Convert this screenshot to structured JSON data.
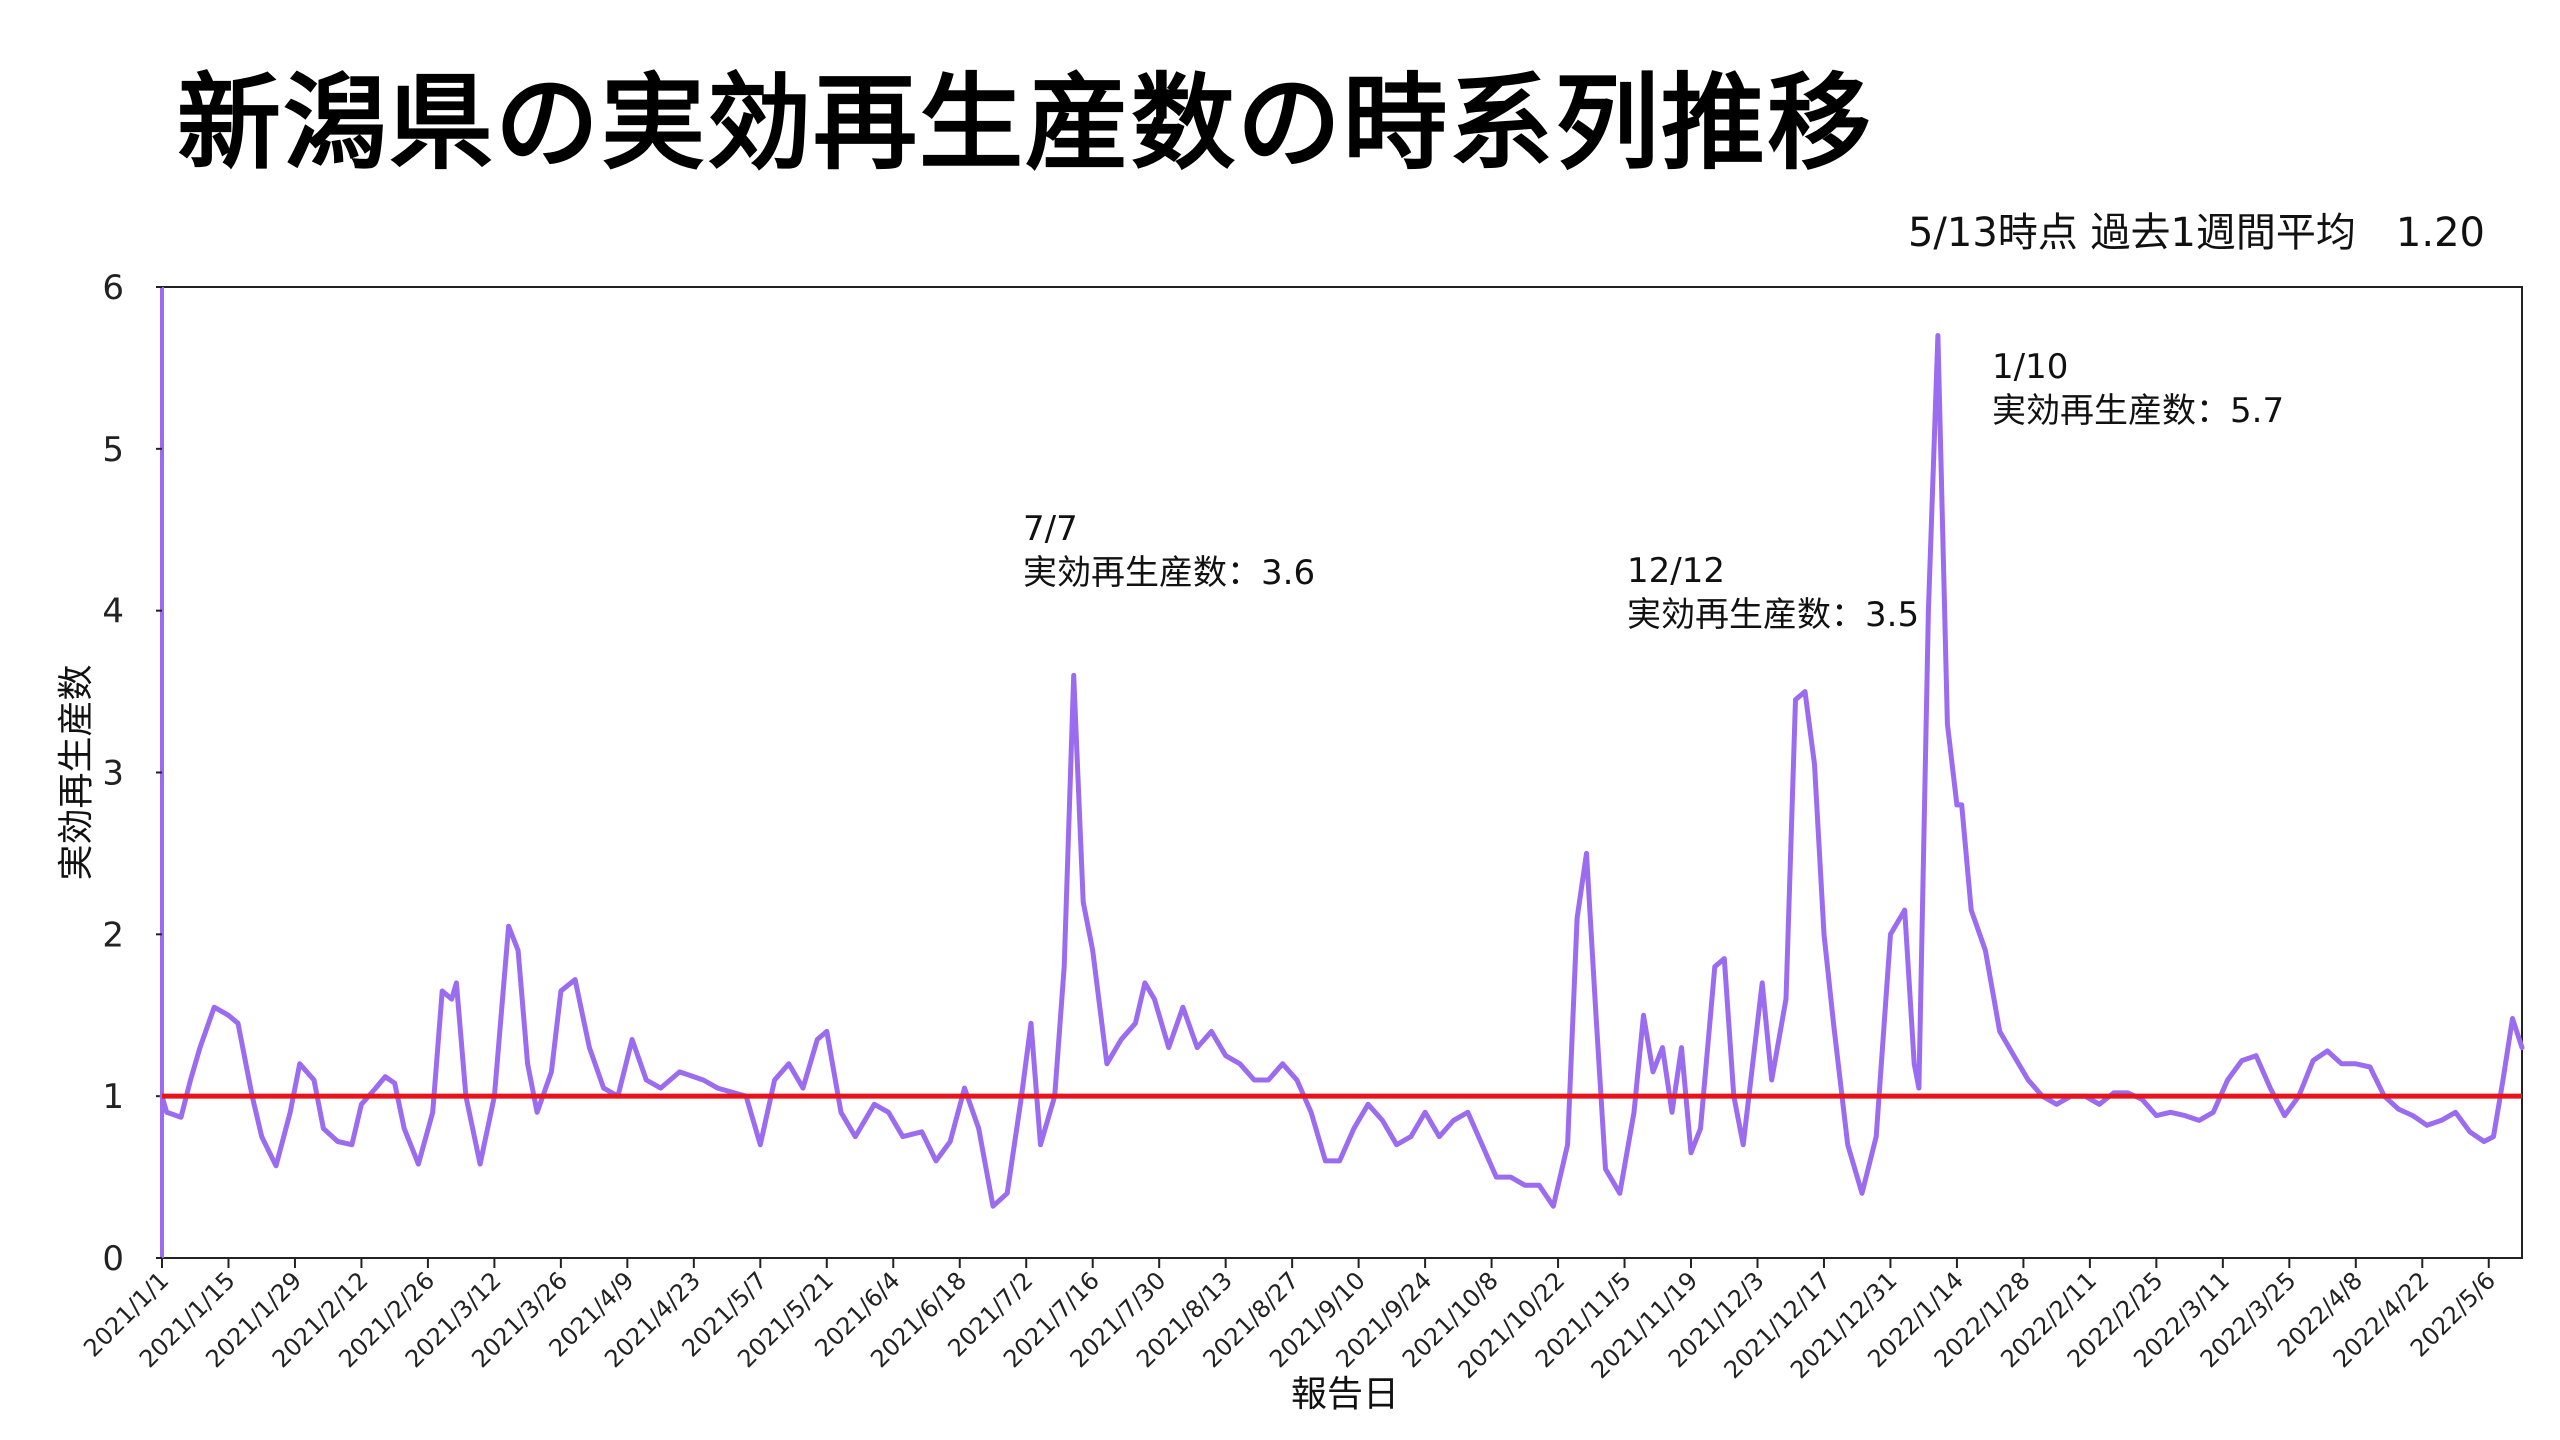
{
  "chart_data": {
    "type": "line",
    "title": "新潟県の実効再生産数の時系列推移",
    "subtitle": "5/13時点 過去1週間平均　1.20",
    "xlabel": "報告日",
    "ylabel": "実効再生産数",
    "ylim": [
      0,
      6
    ],
    "yticks": [
      "0",
      "1",
      "2",
      "3",
      "4",
      "5",
      "6"
    ],
    "x_start": "2021/1/1",
    "x_end": "2022/5/13",
    "x_tick_labels": [
      "2021/1/1",
      "2021/1/15",
      "2021/1/29",
      "2021/2/12",
      "2021/2/26",
      "2021/3/12",
      "2021/3/26",
      "2021/4/9",
      "2021/4/23",
      "2021/5/7",
      "2021/5/21",
      "2021/6/4",
      "2021/6/18",
      "2021/7/2",
      "2021/7/16",
      "2021/7/30",
      "2021/8/13",
      "2021/8/27",
      "2021/9/10",
      "2021/9/24",
      "2021/10/8",
      "2021/10/22",
      "2021/11/5",
      "2021/11/19",
      "2021/12/3",
      "2021/12/17",
      "2021/12/31",
      "2022/1/14",
      "2022/1/28",
      "2022/2/11",
      "2022/2/25",
      "2022/3/11",
      "2022/3/25",
      "2022/4/8",
      "2022/4/22",
      "2022/5/6"
    ],
    "reference_line": {
      "y": 1,
      "color": "#e8141c"
    },
    "series": [
      {
        "color": "#9b6bf0",
        "points": [
          [
            "2021/1/1",
            1.0
          ],
          [
            "2021/1/2",
            0.9
          ],
          [
            "2021/1/5",
            0.87
          ],
          [
            "2021/1/7",
            1.1
          ],
          [
            "2021/1/9",
            1.3
          ],
          [
            "2021/1/12",
            1.55
          ],
          [
            "2021/1/15",
            1.5
          ],
          [
            "2021/1/17",
            1.45
          ],
          [
            "2021/1/20",
            1.0
          ],
          [
            "2021/1/22",
            0.75
          ],
          [
            "2021/1/25",
            0.57
          ],
          [
            "2021/1/28",
            0.9
          ],
          [
            "2021/1/30",
            1.2
          ],
          [
            "2021/2/2",
            1.1
          ],
          [
            "2021/2/4",
            0.8
          ],
          [
            "2021/2/7",
            0.72
          ],
          [
            "2021/2/10",
            0.7
          ],
          [
            "2021/2/12",
            0.95
          ],
          [
            "2021/2/15",
            1.05
          ],
          [
            "2021/2/17",
            1.12
          ],
          [
            "2021/2/19",
            1.08
          ],
          [
            "2021/2/21",
            0.8
          ],
          [
            "2021/2/24",
            0.58
          ],
          [
            "2021/2/27",
            0.9
          ],
          [
            "2021/3/1",
            1.65
          ],
          [
            "2021/3/3",
            1.6
          ],
          [
            "2021/3/4",
            1.7
          ],
          [
            "2021/3/6",
            1.0
          ],
          [
            "2021/3/9",
            0.58
          ],
          [
            "2021/3/12",
            1.0
          ],
          [
            "2021/3/15",
            2.05
          ],
          [
            "2021/3/17",
            1.9
          ],
          [
            "2021/3/19",
            1.2
          ],
          [
            "2021/3/21",
            0.9
          ],
          [
            "2021/3/24",
            1.15
          ],
          [
            "2021/3/26",
            1.65
          ],
          [
            "2021/3/29",
            1.72
          ],
          [
            "2021/4/1",
            1.3
          ],
          [
            "2021/4/4",
            1.05
          ],
          [
            "2021/4/7",
            1.0
          ],
          [
            "2021/4/10",
            1.35
          ],
          [
            "2021/4/13",
            1.1
          ],
          [
            "2021/4/16",
            1.05
          ],
          [
            "2021/4/20",
            1.15
          ],
          [
            "2021/4/25",
            1.1
          ],
          [
            "2021/4/28",
            1.05
          ],
          [
            "2021/5/4",
            1.0
          ],
          [
            "2021/5/7",
            0.7
          ],
          [
            "2021/5/10",
            1.1
          ],
          [
            "2021/5/13",
            1.2
          ],
          [
            "2021/5/16",
            1.05
          ],
          [
            "2021/5/19",
            1.35
          ],
          [
            "2021/5/21",
            1.4
          ],
          [
            "2021/5/24",
            0.9
          ],
          [
            "2021/5/27",
            0.75
          ],
          [
            "2021/5/31",
            0.95
          ],
          [
            "2021/6/3",
            0.9
          ],
          [
            "2021/6/6",
            0.75
          ],
          [
            "2021/6/10",
            0.78
          ],
          [
            "2021/6/13",
            0.6
          ],
          [
            "2021/6/16",
            0.72
          ],
          [
            "2021/6/19",
            1.05
          ],
          [
            "2021/6/22",
            0.8
          ],
          [
            "2021/6/25",
            0.32
          ],
          [
            "2021/6/28",
            0.4
          ],
          [
            "2021/7/1",
            1.0
          ],
          [
            "2021/7/3",
            1.45
          ],
          [
            "2021/7/5",
            0.7
          ],
          [
            "2021/7/6",
            0.8
          ],
          [
            "2021/7/8",
            1.0
          ],
          [
            "2021/7/10",
            1.8
          ],
          [
            "2021/7/12",
            3.6
          ],
          [
            "2021/7/14",
            2.2
          ],
          [
            "2021/7/16",
            1.9
          ],
          [
            "2021/7/19",
            1.2
          ],
          [
            "2021/7/22",
            1.35
          ],
          [
            "2021/7/25",
            1.45
          ],
          [
            "2021/7/27",
            1.7
          ],
          [
            "2021/7/29",
            1.6
          ],
          [
            "2021/8/1",
            1.3
          ],
          [
            "2021/8/4",
            1.55
          ],
          [
            "2021/8/7",
            1.3
          ],
          [
            "2021/8/10",
            1.4
          ],
          [
            "2021/8/13",
            1.25
          ],
          [
            "2021/8/16",
            1.2
          ],
          [
            "2021/8/19",
            1.1
          ],
          [
            "2021/8/22",
            1.1
          ],
          [
            "2021/8/25",
            1.2
          ],
          [
            "2021/8/28",
            1.1
          ],
          [
            "2021/8/31",
            0.9
          ],
          [
            "2021/9/3",
            0.6
          ],
          [
            "2021/9/6",
            0.6
          ],
          [
            "2021/9/9",
            0.8
          ],
          [
            "2021/9/12",
            0.95
          ],
          [
            "2021/9/15",
            0.85
          ],
          [
            "2021/9/18",
            0.7
          ],
          [
            "2021/9/21",
            0.75
          ],
          [
            "2021/9/24",
            0.9
          ],
          [
            "2021/9/27",
            0.75
          ],
          [
            "2021/9/30",
            0.85
          ],
          [
            "2021/10/3",
            0.9
          ],
          [
            "2021/10/6",
            0.7
          ],
          [
            "2021/10/9",
            0.5
          ],
          [
            "2021/10/12",
            0.5
          ],
          [
            "2021/10/15",
            0.45
          ],
          [
            "2021/10/18",
            0.45
          ],
          [
            "2021/10/21",
            0.32
          ],
          [
            "2021/10/24",
            0.7
          ],
          [
            "2021/10/26",
            2.1
          ],
          [
            "2021/10/28",
            2.5
          ],
          [
            "2021/10/30",
            1.5
          ],
          [
            "2021/11/1",
            0.55
          ],
          [
            "2021/11/4",
            0.4
          ],
          [
            "2021/11/7",
            0.9
          ],
          [
            "2021/11/9",
            1.5
          ],
          [
            "2021/11/11",
            1.15
          ],
          [
            "2021/11/13",
            1.3
          ],
          [
            "2021/11/15",
            0.9
          ],
          [
            "2021/11/17",
            1.3
          ],
          [
            "2021/11/19",
            0.65
          ],
          [
            "2021/11/21",
            0.8
          ],
          [
            "2021/11/24",
            1.8
          ],
          [
            "2021/11/26",
            1.85
          ],
          [
            "2021/11/28",
            1.0
          ],
          [
            "2021/11/30",
            0.7
          ],
          [
            "2021/12/2",
            1.2
          ],
          [
            "2021/12/4",
            1.7
          ],
          [
            "2021/12/6",
            1.1
          ],
          [
            "2021/12/9",
            1.6
          ],
          [
            "2021/12/11",
            3.45
          ],
          [
            "2021/12/13",
            3.5
          ],
          [
            "2021/12/15",
            3.05
          ],
          [
            "2021/12/17",
            2.0
          ],
          [
            "2021/12/19",
            1.45
          ],
          [
            "2021/12/22",
            0.7
          ],
          [
            "2021/12/25",
            0.4
          ],
          [
            "2021/12/28",
            0.75
          ],
          [
            "2021/12/31",
            2.0
          ],
          [
            "2022/1/3",
            2.15
          ],
          [
            "2022/1/5",
            1.2
          ],
          [
            "2022/1/6",
            1.05
          ],
          [
            "2022/1/8",
            4.0
          ],
          [
            "2022/1/10",
            5.7
          ],
          [
            "2022/1/12",
            3.3
          ],
          [
            "2022/1/14",
            2.8
          ],
          [
            "2022/1/15",
            2.8
          ],
          [
            "2022/1/17",
            2.15
          ],
          [
            "2022/1/20",
            1.9
          ],
          [
            "2022/1/23",
            1.4
          ],
          [
            "2022/1/26",
            1.25
          ],
          [
            "2022/1/29",
            1.1
          ],
          [
            "2022/2/1",
            1.0
          ],
          [
            "2022/2/4",
            0.95
          ],
          [
            "2022/2/7",
            1.0
          ],
          [
            "2022/2/10",
            1.0
          ],
          [
            "2022/2/13",
            0.95
          ],
          [
            "2022/2/16",
            1.02
          ],
          [
            "2022/2/19",
            1.02
          ],
          [
            "2022/2/22",
            0.98
          ],
          [
            "2022/2/25",
            0.88
          ],
          [
            "2022/2/28",
            0.9
          ],
          [
            "2022/3/3",
            0.88
          ],
          [
            "2022/3/6",
            0.85
          ],
          [
            "2022/3/9",
            0.9
          ],
          [
            "2022/3/12",
            1.1
          ],
          [
            "2022/3/15",
            1.22
          ],
          [
            "2022/3/18",
            1.25
          ],
          [
            "2022/3/21",
            1.05
          ],
          [
            "2022/3/24",
            0.88
          ],
          [
            "2022/3/27",
            1.0
          ],
          [
            "2022/3/30",
            1.22
          ],
          [
            "2022/4/2",
            1.28
          ],
          [
            "2022/4/5",
            1.2
          ],
          [
            "2022/4/8",
            1.2
          ],
          [
            "2022/4/11",
            1.18
          ],
          [
            "2022/4/14",
            1.0
          ],
          [
            "2022/4/17",
            0.92
          ],
          [
            "2022/4/20",
            0.88
          ],
          [
            "2022/4/23",
            0.82
          ],
          [
            "2022/4/26",
            0.85
          ],
          [
            "2022/4/29",
            0.9
          ],
          [
            "2022/5/2",
            0.78
          ],
          [
            "2022/5/5",
            0.72
          ],
          [
            "2022/5/7",
            0.75
          ],
          [
            "2022/5/9",
            1.1
          ],
          [
            "2022/5/11",
            1.48
          ],
          [
            "2022/5/13",
            1.3
          ]
        ]
      }
    ],
    "annotations": [
      {
        "date": "2021/7/7",
        "value": "実効再生産数：3.6"
      },
      {
        "date": "12/12",
        "value": "実効再生産数：3.5"
      },
      {
        "date": "1/10",
        "value": "実効再生産数：5.7"
      }
    ],
    "grid": false,
    "legend": "none"
  }
}
